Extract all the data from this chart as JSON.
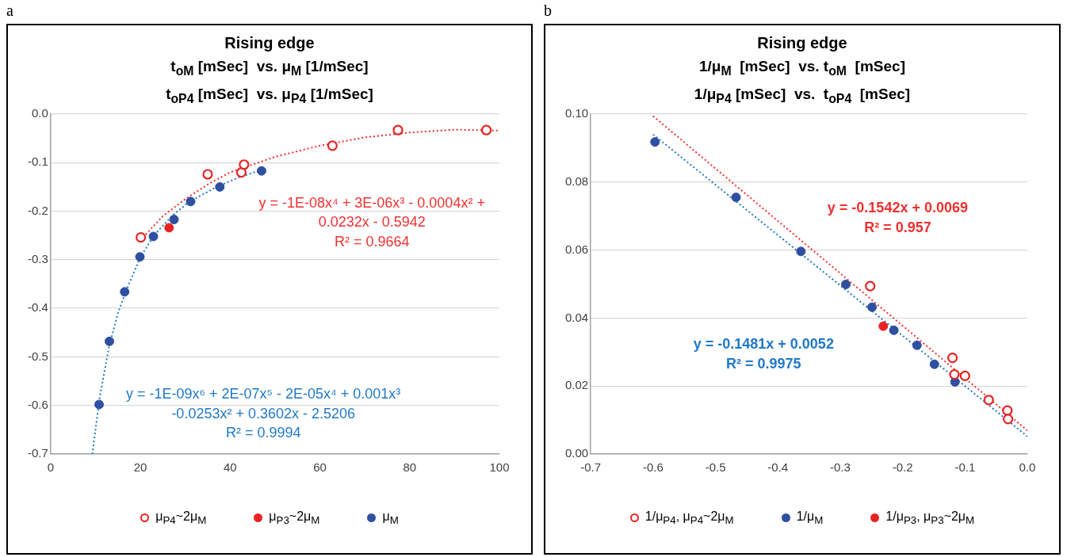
{
  "chart_data": [
    {
      "type": "scatter",
      "title": "Rising edge",
      "subtitle": "t$_{oM}$ [mSec]  vs. μ$_{M}$ [1/mSec]\nt$_{oP4}$ [mSec]  vs. μ$_{P4}$ [1/mSec]",
      "xlim": [
        0,
        100
      ],
      "xticks": [
        0,
        20,
        40,
        60,
        80,
        100
      ],
      "ylim": [
        -0.7,
        0
      ],
      "yticks": [
        {
          "value": 0,
          "label": "0.0"
        },
        -0.1,
        -0.2,
        -0.3,
        -0.4,
        -0.5,
        -0.6,
        -0.7
      ],
      "grid": "y",
      "legend": "bottom",
      "marker": "circle",
      "annotations": [
        "a",
        "y = -1E-08x⁴ + 3E-06x³ - 0.0004x² +",
        "0.0232x - 0.5942",
        "R² = 0.9664",
        "y = -1E-09x⁶ + 2E-07x⁵ - 2E-05x⁴ + 0.001x³",
        "-0.0253x² + 0.3602x - 2.5206",
        "R² = 0.9994"
      ],
      "series": [
        {
          "name": "μ$_{P4}$~2μ$_{M}$",
          "color": "#e82323",
          "marker": "circle-open",
          "x": [
            20.1,
            35.0,
            42.5,
            43.1,
            62.8,
            77.4,
            97.1
          ],
          "values": [
            -0.254,
            -0.124,
            -0.12,
            -0.104,
            -0.065,
            -0.033,
            -0.033
          ]
        },
        {
          "name": "μ$_{P3}$~2μ$_{M}$",
          "color": "#e82323",
          "x": [
            26.4
          ],
          "values": [
            -0.234
          ]
        },
        {
          "name": "μ$_{M}$",
          "color": "#2f4fa0",
          "x": [
            10.8,
            13.1,
            16.5,
            19.9,
            22.9,
            27.5,
            31.2,
            37.7,
            47.0
          ],
          "values": [
            -0.598,
            -0.468,
            -0.366,
            -0.294,
            -0.252,
            -0.217,
            -0.18,
            -0.15,
            -0.117
          ]
        },
        {
          "type": "line",
          "color": "#f03030",
          "line_style": "dotted",
          "marker": "none",
          "x": [
            20,
            25,
            30,
            35,
            40,
            50,
            60,
            70,
            80,
            90,
            100
          ],
          "values": [
            -0.26,
            -0.21,
            -0.175,
            -0.145,
            -0.12,
            -0.088,
            -0.065,
            -0.048,
            -0.038,
            -0.032,
            -0.034
          ]
        },
        {
          "type": "line",
          "color": "#1f78c8",
          "line_style": "dotted",
          "marker": "none",
          "x": [
            9.3,
            10,
            11,
            13,
            15,
            17,
            20,
            23,
            27,
            31,
            37,
            42,
            47
          ],
          "values": [
            -0.7,
            -0.65,
            -0.58,
            -0.48,
            -0.41,
            -0.36,
            -0.295,
            -0.25,
            -0.21,
            -0.18,
            -0.15,
            -0.13,
            -0.115
          ]
        }
      ]
    },
    {
      "type": "scatter",
      "title": "Rising edge",
      "subtitle": "1/μ$_{M}$  [mSec]  vs. t$_{oM}$  [mSec]\n1/μ$_{P4}$ [mSec]  vs.  t$_{oP4}$  [mSec]",
      "xlim": [
        -0.7,
        0
      ],
      "xticks": [
        -0.7,
        -0.6,
        -0.5,
        -0.4,
        -0.3,
        -0.2,
        -0.1,
        {
          "value": 0,
          "label": "0.0"
        }
      ],
      "ylim": [
        0,
        0.1
      ],
      "yticks": [
        {
          "value": 0,
          "label": "0.00"
        },
        {
          "value": 0.02,
          "label": "0.02"
        },
        {
          "value": 0.04,
          "label": "0.04"
        },
        {
          "value": 0.06,
          "label": "0.06"
        },
        {
          "value": 0.08,
          "label": "0.08"
        },
        {
          "value": 0.1,
          "label": "0.10"
        }
      ],
      "grid": "y",
      "legend": "bottom",
      "marker": "circle",
      "annotations": [
        "b",
        "y = -0.1542x + 0.0069",
        "R² = 0.957",
        "y = -0.1481x + 0.0052",
        "R² = 0.9975"
      ],
      "series": [
        {
          "name": "1/μ$_{P4}$, μ$_{P4}$~2μ$_{M}$",
          "color": "#e82323",
          "marker": "circle-open",
          "x": [
            -0.252,
            -0.12,
            -0.117,
            -0.1,
            -0.062,
            -0.032,
            -0.031
          ],
          "values": [
            0.0494,
            0.0283,
            0.0234,
            0.023,
            0.0159,
            0.0128,
            0.0103
          ]
        },
        {
          "name": "1/μ$_{M}$",
          "color": "#2f4fa0",
          "x": [
            -0.597,
            -0.467,
            -0.363,
            -0.291,
            -0.249,
            -0.214,
            -0.177,
            -0.149,
            -0.116
          ],
          "values": [
            0.0918,
            0.0755,
            0.0596,
            0.0499,
            0.0432,
            0.0364,
            0.032,
            0.0264,
            0.0212
          ]
        },
        {
          "name": "1/μ$_{P3}$, μ$_{P3}$~2μ$_{M}$",
          "color": "#e82323",
          "x": [
            -0.231
          ],
          "values": [
            0.0376
          ]
        },
        {
          "type": "line",
          "color": "#f03030",
          "line_style": "dotted",
          "marker": "none",
          "x": [
            -0.6,
            0
          ],
          "values": [
            0.0994,
            0.0069
          ]
        },
        {
          "type": "line",
          "color": "#1f78c8",
          "line_style": "dotted",
          "marker": "none",
          "x": [
            -0.6,
            0
          ],
          "values": [
            0.094,
            0.0052
          ]
        }
      ]
    }
  ]
}
